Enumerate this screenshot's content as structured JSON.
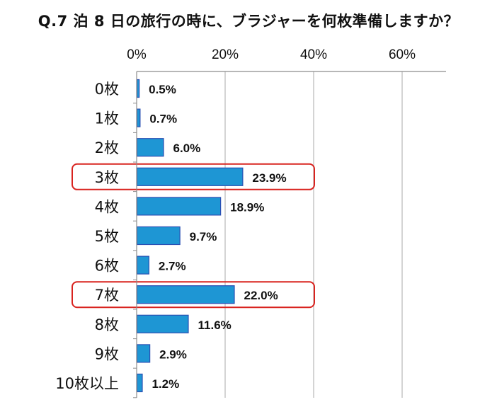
{
  "chart_data": {
    "type": "bar",
    "orientation": "horizontal",
    "title": "Q.7 泊 8 日の旅行の時に、ブラジャーを何枚準備しますか？",
    "categories": [
      "0枚",
      "1枚",
      "2枚",
      "3枚",
      "4枚",
      "5枚",
      "6枚",
      "7枚",
      "8枚",
      "9枚",
      "10枚以上"
    ],
    "values": [
      0.5,
      0.7,
      6.0,
      23.9,
      18.9,
      9.7,
      2.7,
      22.0,
      11.6,
      2.9,
      1.2
    ],
    "value_labels": [
      "0.5%",
      "0.7%",
      "6.0%",
      "23.9%",
      "18.9%",
      "9.7%",
      "2.7%",
      "22.0%",
      "11.6%",
      "2.9%",
      "1.2%"
    ],
    "x_ticks": [
      "0%",
      "20%",
      "40%",
      "60%"
    ],
    "x_tick_values": [
      0,
      20,
      40,
      60
    ],
    "xlim": [
      0,
      70
    ],
    "x_axis_position": "top",
    "grid": true,
    "highlighted_categories": [
      "3枚",
      "7枚"
    ],
    "colors": {
      "bar_fill": "#1e96d4",
      "bar_stroke": "#2a4fb3",
      "highlight_box": "#d9231f",
      "grid": "#b8b8b8"
    }
  }
}
